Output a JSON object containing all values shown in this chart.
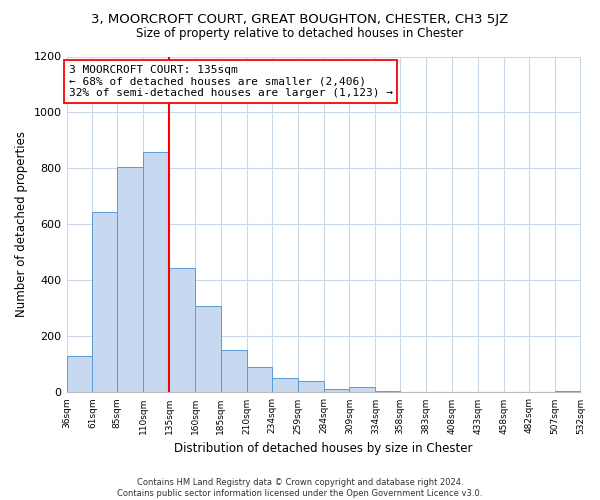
{
  "title": "3, MOORCROFT COURT, GREAT BOUGHTON, CHESTER, CH3 5JZ",
  "subtitle": "Size of property relative to detached houses in Chester",
  "xlabel": "Distribution of detached houses by size in Chester",
  "ylabel": "Number of detached properties",
  "bar_color": "#c6d9f0",
  "bar_edge_color": "#5b9bd5",
  "vline_x": 135,
  "vline_color": "red",
  "annotation_title": "3 MOORCROFT COURT: 135sqm",
  "annotation_line1": "← 68% of detached houses are smaller (2,406)",
  "annotation_line2": "32% of semi-detached houses are larger (1,123) →",
  "bins": [
    36,
    61,
    85,
    110,
    135,
    160,
    185,
    210,
    234,
    259,
    284,
    309,
    334,
    358,
    383,
    408,
    433,
    458,
    482,
    507,
    532
  ],
  "counts": [
    130,
    645,
    805,
    860,
    445,
    310,
    150,
    90,
    52,
    42,
    14,
    20,
    5,
    3,
    2,
    1,
    0,
    0,
    0,
    5
  ],
  "ylim": [
    0,
    1200
  ],
  "yticks": [
    0,
    200,
    400,
    600,
    800,
    1000,
    1200
  ],
  "footer_line1": "Contains HM Land Registry data © Crown copyright and database right 2024.",
  "footer_line2": "Contains public sector information licensed under the Open Government Licence v3.0."
}
